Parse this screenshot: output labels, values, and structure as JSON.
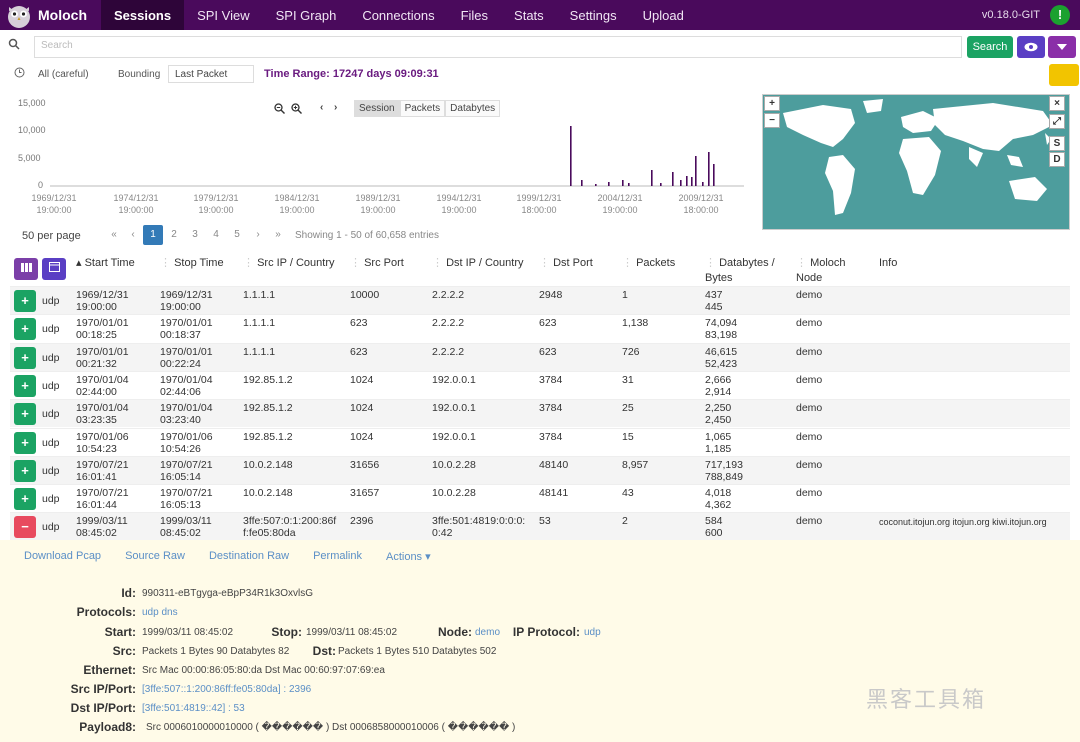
{
  "nav": {
    "brand": "Moloch",
    "items": [
      "Sessions",
      "SPI View",
      "SPI Graph",
      "Connections",
      "Files",
      "Stats",
      "Settings",
      "Upload"
    ],
    "active": "Sessions",
    "version": "v0.18.0-GIT",
    "health_glyph": "!"
  },
  "search": {
    "placeholder": "Search",
    "button": "Search"
  },
  "filters": {
    "date_range": "All (careful)",
    "bounding_label": "Bounding",
    "bounding_value": "Last Packet",
    "time_range": "Time Range: 17247 days 09:09:31"
  },
  "graph": {
    "y_ticks": [
      "15,000",
      "10,000",
      "5,000",
      "0"
    ],
    "x_ticks": [
      {
        "d": "1969/12/31",
        "t": "19:00:00"
      },
      {
        "d": "1974/12/31",
        "t": "19:00:00"
      },
      {
        "d": "1979/12/31",
        "t": "19:00:00"
      },
      {
        "d": "1984/12/31",
        "t": "19:00:00"
      },
      {
        "d": "1989/12/31",
        "t": "19:00:00"
      },
      {
        "d": "1994/12/31",
        "t": "19:00:00"
      },
      {
        "d": "1999/12/31",
        "t": "18:00:00"
      },
      {
        "d": "2004/12/31",
        "t": "19:00:00"
      },
      {
        "d": "2009/12/31",
        "t": "18:00:00"
      }
    ],
    "type_buttons": [
      "Session",
      "Packets",
      "Databytes"
    ],
    "active_type": "Session"
  },
  "map": {
    "zoom_in": "+",
    "zoom_out": "−",
    "close": "×",
    "expand": "⤢",
    "src": "S",
    "dst": "D"
  },
  "pager": {
    "per_page": "50 per page",
    "pages": [
      "«",
      "‹",
      "1",
      "2",
      "3",
      "4",
      "5",
      "›",
      "»"
    ],
    "current": "1",
    "showing": "Showing 1 - 50 of 60,658 entries"
  },
  "columns": [
    "Start Time",
    "Stop Time",
    "Src IP / Country",
    "Src Port",
    "Dst IP / Country",
    "Dst Port",
    "Packets",
    "Databytes / Bytes",
    "Moloch Node",
    "Info"
  ],
  "rows": [
    {
      "proto": "udp",
      "start": [
        "1969/12/31",
        "19:00:00"
      ],
      "stop": [
        "1969/12/31",
        "19:00:00"
      ],
      "src": "1.1.1.1",
      "sport": "10000",
      "dst": "2.2.2.2",
      "dport": "2948",
      "pkts": "1",
      "bytes": [
        "437",
        "445"
      ],
      "node": "demo",
      "info": ""
    },
    {
      "proto": "udp",
      "start": [
        "1970/01/01",
        "00:18:25"
      ],
      "stop": [
        "1970/01/01",
        "00:18:37"
      ],
      "src": "1.1.1.1",
      "sport": "623",
      "dst": "2.2.2.2",
      "dport": "623",
      "pkts": "1,138",
      "bytes": [
        "74,094",
        "83,198"
      ],
      "node": "demo",
      "info": ""
    },
    {
      "proto": "udp",
      "start": [
        "1970/01/01",
        "00:21:32"
      ],
      "stop": [
        "1970/01/01",
        "00:22:24"
      ],
      "src": "1.1.1.1",
      "sport": "623",
      "dst": "2.2.2.2",
      "dport": "623",
      "pkts": "726",
      "bytes": [
        "46,615",
        "52,423"
      ],
      "node": "demo",
      "info": ""
    },
    {
      "proto": "udp",
      "start": [
        "1970/01/04",
        "02:44:00"
      ],
      "stop": [
        "1970/01/04",
        "02:44:06"
      ],
      "src": "192.85.1.2",
      "sport": "1024",
      "dst": "192.0.0.1",
      "dport": "3784",
      "pkts": "31",
      "bytes": [
        "2,666",
        "2,914"
      ],
      "node": "demo",
      "info": ""
    },
    {
      "proto": "udp",
      "start": [
        "1970/01/04",
        "03:23:35"
      ],
      "stop": [
        "1970/01/04",
        "03:23:40"
      ],
      "src": "192.85.1.2",
      "sport": "1024",
      "dst": "192.0.0.1",
      "dport": "3784",
      "pkts": "25",
      "bytes": [
        "2,250",
        "2,450"
      ],
      "node": "demo",
      "info": ""
    },
    {
      "proto": "udp",
      "start": [
        "1970/01/06",
        "10:54:23"
      ],
      "stop": [
        "1970/01/06",
        "10:54:26"
      ],
      "src": "192.85.1.2",
      "sport": "1024",
      "dst": "192.0.0.1",
      "dport": "3784",
      "pkts": "15",
      "bytes": [
        "1,065",
        "1,185"
      ],
      "node": "demo",
      "info": ""
    },
    {
      "proto": "udp",
      "start": [
        "1970/07/21",
        "16:01:41"
      ],
      "stop": [
        "1970/07/21",
        "16:05:14"
      ],
      "src": "10.0.2.148",
      "sport": "31656",
      "dst": "10.0.2.28",
      "dport": "48140",
      "pkts": "8,957",
      "bytes": [
        "717,193",
        "788,849"
      ],
      "node": "demo",
      "info": ""
    },
    {
      "proto": "udp",
      "start": [
        "1970/07/21",
        "16:01:44"
      ],
      "stop": [
        "1970/07/21",
        "16:05:13"
      ],
      "src": "10.0.2.148",
      "sport": "31657",
      "dst": "10.0.2.28",
      "dport": "48141",
      "pkts": "43",
      "bytes": [
        "4,018",
        "4,362"
      ],
      "node": "demo",
      "info": ""
    },
    {
      "proto": "udp",
      "start": [
        "1999/03/11",
        "08:45:02"
      ],
      "stop": [
        "1999/03/11",
        "08:45:02"
      ],
      "src": "3ffe:507:0:1:200:86ff:fe05:80da",
      "sport": "2396",
      "dst": "3ffe:501:4819:0:0:0:0:42",
      "dport": "53",
      "pkts": "2",
      "bytes": [
        "584",
        "600"
      ],
      "node": "demo",
      "info": "coconut.itojun.org   itojun.org   kiwi.itojun.org"
    }
  ],
  "detail": {
    "links": [
      "Download Pcap",
      "Source Raw",
      "Destination Raw",
      "Permalink",
      "Actions ▾"
    ],
    "id_label": "Id:",
    "id": "990311-eBTgyga-eBpP34R1k3OxvlsG",
    "protocols_label": "Protocols:",
    "protocols": "udp  dns",
    "start_label": "Start:",
    "start": "1999/03/11 08:45:02",
    "stop_label": "Stop:",
    "stop": "1999/03/11 08:45:02",
    "node_label": "Node:",
    "node": "demo",
    "ipproto_label": "IP Protocol:",
    "ipproto": "udp",
    "src_label": "Src:",
    "src": "Packets 1  Bytes 90  Databytes 82",
    "dst_label": "Dst:",
    "dst": "Packets 1  Bytes 510  Databytes 502",
    "eth_label": "Ethernet:",
    "eth": "Src Mac 00:00:86:05:80:da  Dst Mac 00:60:97:07:69:ea",
    "srcip_label": "Src IP/Port:",
    "srcip": "[3ffe:507::1:200:86ff:fe05:80da] : 2396",
    "dstip_label": "Dst IP/Port:",
    "dstip": "[3ffe:501:4819::42] : 53",
    "payload_label": "Payload8:",
    "payload": "Src 0006010000010000 ( ������ ) Dst 0006858000010006 ( ������ )"
  },
  "watermark": "黑客工具箱",
  "colors": {
    "nav": "#4a0a5c",
    "search_btn": "#1ba363",
    "eye_btn": "#5a3fc4",
    "menu_btn": "#8a2fa8",
    "bar": "#4a0a5c",
    "map_sea": "#4d9d9d"
  }
}
